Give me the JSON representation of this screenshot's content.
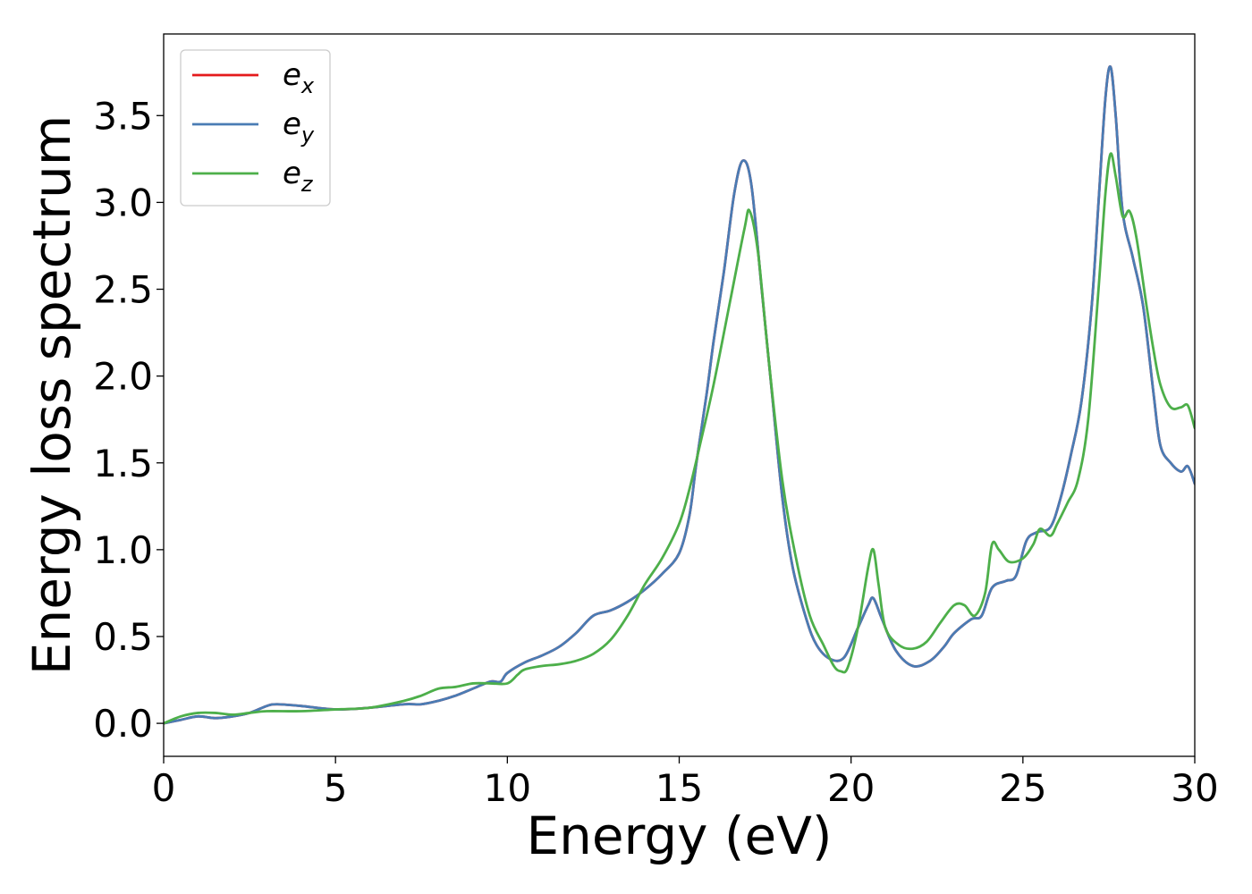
{
  "chart_data": {
    "type": "line",
    "xlabel": "Energy (eV)",
    "ylabel": "Energy loss spectrum",
    "xlim": [
      0,
      30
    ],
    "ylim": [
      -0.19,
      3.97
    ],
    "x_ticks": [
      "0",
      "5",
      "10",
      "15",
      "20",
      "25",
      "30"
    ],
    "y_ticks": [
      "0.0",
      "0.5",
      "1.0",
      "1.5",
      "2.0",
      "2.5",
      "3.0",
      "3.5"
    ],
    "grid": false,
    "legend_position": "top-left",
    "series": [
      {
        "name": "e_x",
        "legend_base": "e",
        "legend_sub": "x",
        "color": "#e41a1c",
        "x": [
          0,
          0.5,
          1.0,
          1.5,
          2.0,
          2.5,
          3.0,
          3.3,
          4.0,
          5.0,
          6.0,
          7.0,
          7.5,
          8.0,
          8.5,
          9.0,
          9.5,
          9.8,
          10.0,
          10.5,
          11.0,
          11.5,
          12.0,
          12.5,
          13.0,
          13.5,
          14.0,
          14.5,
          15.0,
          15.3,
          15.5,
          15.8,
          16.0,
          16.3,
          16.6,
          16.85,
          17.1,
          17.4,
          17.7,
          18.0,
          18.3,
          18.7,
          19.0,
          19.4,
          19.8,
          20.2,
          20.5,
          20.65,
          20.9,
          21.3,
          21.8,
          22.3,
          22.7,
          23.0,
          23.5,
          23.8,
          24.1,
          24.5,
          24.8,
          25.1,
          25.4,
          25.8,
          26.1,
          26.4,
          26.7,
          27.0,
          27.2,
          27.4,
          27.55,
          27.7,
          27.9,
          28.2,
          28.5,
          28.8,
          29.0,
          29.3,
          29.6,
          29.8,
          30.0
        ],
        "y": [
          0.0,
          0.02,
          0.04,
          0.03,
          0.04,
          0.06,
          0.1,
          0.11,
          0.1,
          0.08,
          0.09,
          0.11,
          0.11,
          0.13,
          0.16,
          0.2,
          0.24,
          0.24,
          0.29,
          0.35,
          0.39,
          0.44,
          0.52,
          0.62,
          0.65,
          0.7,
          0.77,
          0.86,
          0.98,
          1.2,
          1.5,
          1.9,
          2.2,
          2.6,
          3.05,
          3.24,
          3.1,
          2.5,
          1.9,
          1.3,
          0.9,
          0.6,
          0.45,
          0.37,
          0.38,
          0.55,
          0.68,
          0.72,
          0.6,
          0.42,
          0.33,
          0.36,
          0.44,
          0.52,
          0.6,
          0.62,
          0.78,
          0.82,
          0.85,
          1.05,
          1.1,
          1.13,
          1.3,
          1.55,
          1.85,
          2.4,
          3.0,
          3.6,
          3.78,
          3.5,
          2.95,
          2.68,
          2.4,
          1.9,
          1.6,
          1.5,
          1.45,
          1.48,
          1.38
        ]
      },
      {
        "name": "e_y",
        "legend_base": "e",
        "legend_sub": "y",
        "color": "#4a7cb4",
        "x": [
          0,
          0.5,
          1.0,
          1.5,
          2.0,
          2.5,
          3.0,
          3.3,
          4.0,
          5.0,
          6.0,
          7.0,
          7.5,
          8.0,
          8.5,
          9.0,
          9.5,
          9.8,
          10.0,
          10.5,
          11.0,
          11.5,
          12.0,
          12.5,
          13.0,
          13.5,
          14.0,
          14.5,
          15.0,
          15.3,
          15.5,
          15.8,
          16.0,
          16.3,
          16.6,
          16.85,
          17.1,
          17.4,
          17.7,
          18.0,
          18.3,
          18.7,
          19.0,
          19.4,
          19.8,
          20.2,
          20.5,
          20.65,
          20.9,
          21.3,
          21.8,
          22.3,
          22.7,
          23.0,
          23.5,
          23.8,
          24.1,
          24.5,
          24.8,
          25.1,
          25.4,
          25.8,
          26.1,
          26.4,
          26.7,
          27.0,
          27.2,
          27.4,
          27.55,
          27.7,
          27.9,
          28.2,
          28.5,
          28.8,
          29.0,
          29.3,
          29.6,
          29.8,
          30.0
        ],
        "y": [
          0.0,
          0.02,
          0.04,
          0.03,
          0.04,
          0.06,
          0.1,
          0.11,
          0.1,
          0.08,
          0.09,
          0.11,
          0.11,
          0.13,
          0.16,
          0.2,
          0.24,
          0.24,
          0.29,
          0.35,
          0.39,
          0.44,
          0.52,
          0.62,
          0.65,
          0.7,
          0.77,
          0.86,
          0.98,
          1.2,
          1.5,
          1.9,
          2.2,
          2.6,
          3.05,
          3.24,
          3.1,
          2.5,
          1.9,
          1.3,
          0.9,
          0.6,
          0.45,
          0.37,
          0.38,
          0.55,
          0.68,
          0.72,
          0.6,
          0.42,
          0.33,
          0.36,
          0.44,
          0.52,
          0.6,
          0.62,
          0.78,
          0.82,
          0.85,
          1.05,
          1.1,
          1.13,
          1.3,
          1.55,
          1.85,
          2.4,
          3.0,
          3.6,
          3.78,
          3.5,
          2.95,
          2.68,
          2.4,
          1.9,
          1.6,
          1.5,
          1.45,
          1.48,
          1.38
        ]
      },
      {
        "name": "e_z",
        "legend_base": "e",
        "legend_sub": "z",
        "color": "#4daf4a",
        "x": [
          0,
          0.5,
          1.0,
          1.5,
          2.0,
          2.5,
          3.0,
          4.0,
          5.0,
          6.0,
          7.0,
          7.5,
          8.0,
          8.5,
          9.0,
          9.5,
          10.0,
          10.3,
          10.5,
          11.0,
          11.5,
          12.0,
          12.5,
          13.0,
          13.5,
          14.0,
          14.5,
          15.0,
          15.3,
          15.6,
          16.0,
          16.5,
          16.9,
          17.05,
          17.3,
          17.6,
          18.0,
          18.4,
          18.8,
          19.2,
          19.5,
          19.7,
          19.9,
          20.2,
          20.5,
          20.65,
          20.8,
          21.0,
          21.4,
          21.8,
          22.2,
          22.6,
          23.0,
          23.3,
          23.6,
          23.9,
          24.1,
          24.3,
          24.6,
          25.0,
          25.3,
          25.5,
          25.8,
          26.0,
          26.3,
          26.6,
          26.9,
          27.2,
          27.4,
          27.55,
          27.7,
          27.9,
          28.1,
          28.3,
          28.6,
          28.8,
          29.0,
          29.3,
          29.6,
          29.8,
          30.0
        ],
        "y": [
          0.0,
          0.04,
          0.06,
          0.06,
          0.05,
          0.06,
          0.07,
          0.07,
          0.08,
          0.09,
          0.13,
          0.16,
          0.2,
          0.21,
          0.23,
          0.23,
          0.23,
          0.28,
          0.31,
          0.33,
          0.34,
          0.36,
          0.4,
          0.48,
          0.62,
          0.8,
          0.95,
          1.15,
          1.35,
          1.6,
          1.95,
          2.45,
          2.85,
          2.95,
          2.7,
          2.1,
          1.4,
          0.95,
          0.62,
          0.45,
          0.33,
          0.3,
          0.32,
          0.55,
          0.9,
          1.0,
          0.8,
          0.55,
          0.45,
          0.43,
          0.47,
          0.58,
          0.68,
          0.68,
          0.62,
          0.75,
          1.03,
          1.0,
          0.93,
          0.95,
          1.03,
          1.12,
          1.08,
          1.15,
          1.27,
          1.4,
          1.75,
          2.5,
          3.05,
          3.28,
          3.15,
          2.92,
          2.95,
          2.8,
          2.4,
          2.15,
          1.95,
          1.82,
          1.82,
          1.83,
          1.7
        ]
      }
    ]
  }
}
